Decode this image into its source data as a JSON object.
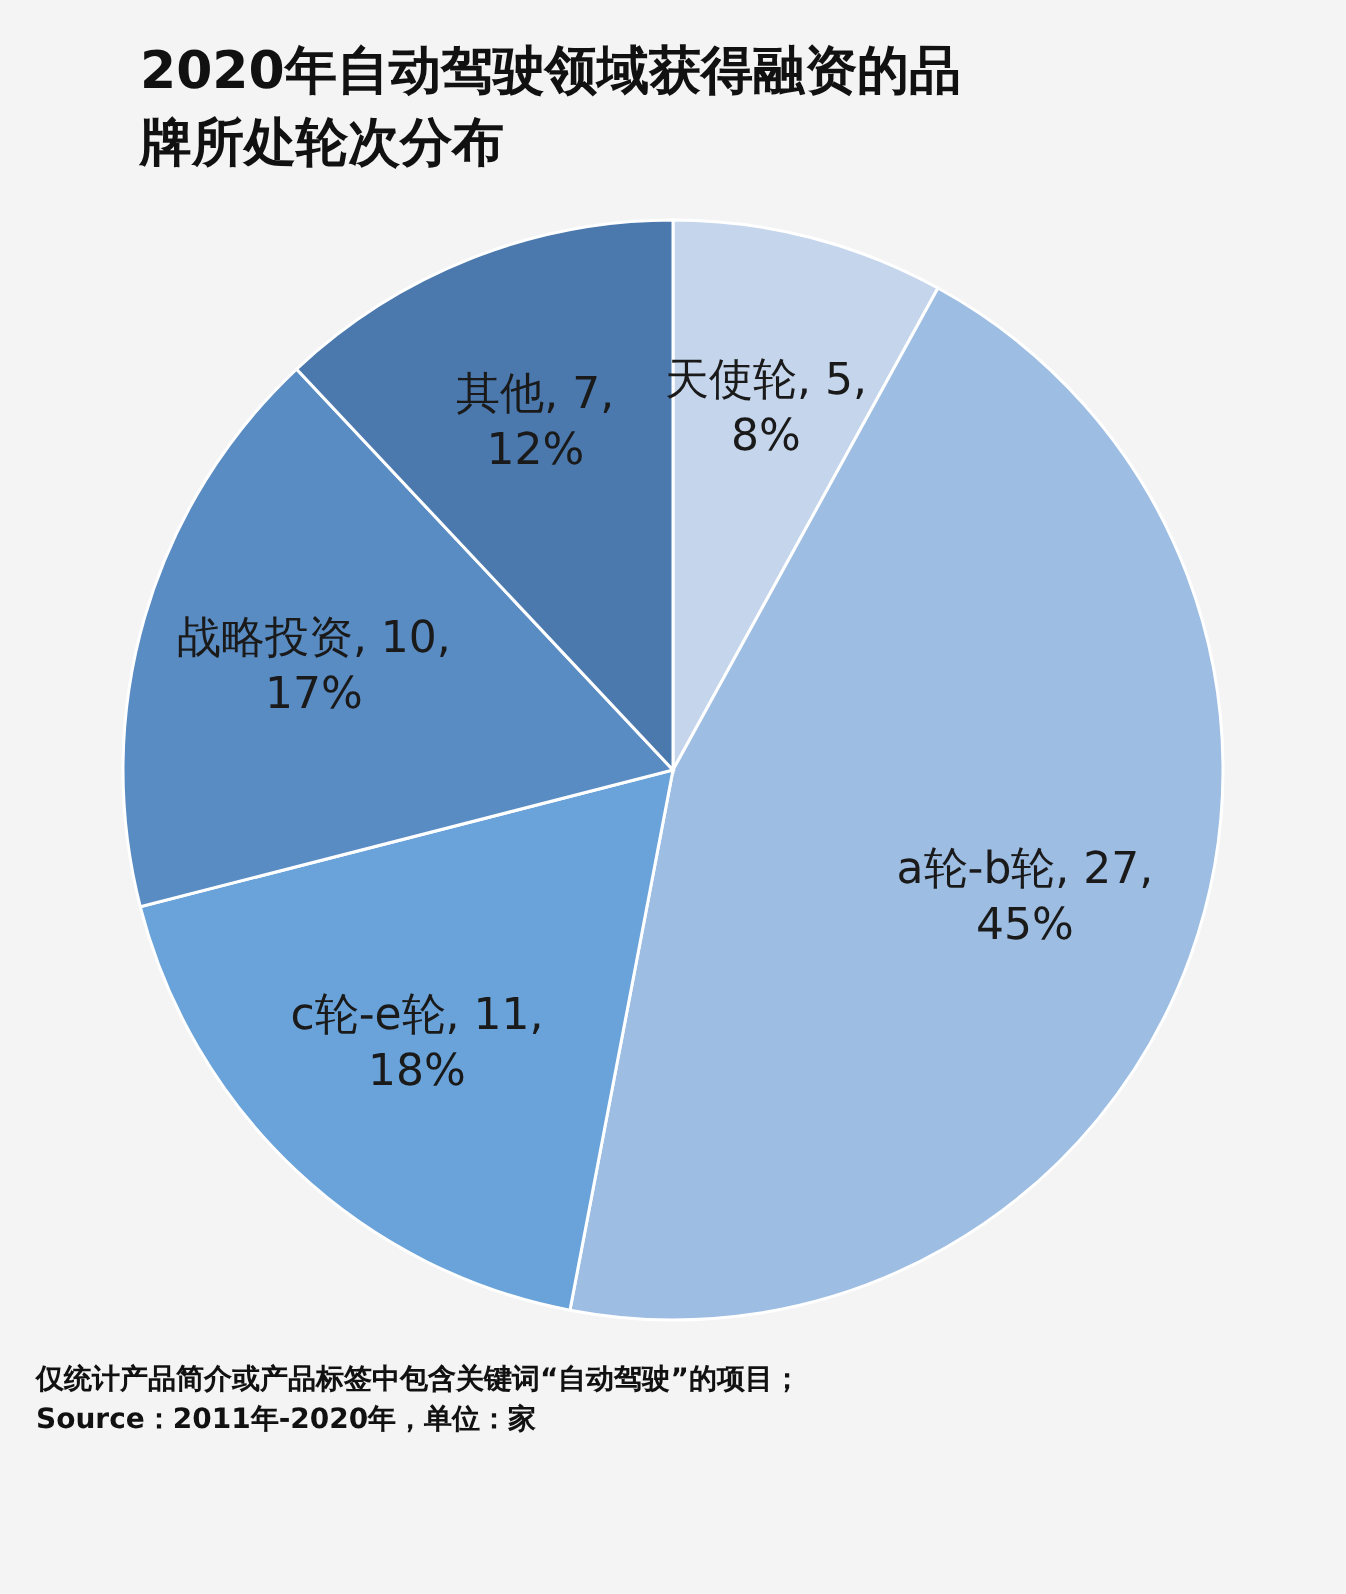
{
  "chart_data": {
    "type": "pie",
    "title": "2020年自动驾驶领域获得融资的品牌所处轮次分布",
    "categories": [
      "天使轮",
      "a轮-b轮",
      "c轮-e轮",
      "战略投资",
      "其他"
    ],
    "values": [
      8,
      45,
      18,
      17,
      12
    ],
    "colors": [
      "#c5d6ec",
      "#9dbde3",
      "#6aa3d9",
      "#5a8cc4",
      "#4b79ad"
    ],
    "value_labels": [
      ", 5,\n8%",
      ", 27,\n45%",
      ", 11,\n18%",
      ", 10,\n17%",
      ", 7,\n12%"
    ],
    "annotations": [
      "仅统计产品简介或产品标签中包含关键词“自动驾驶”的项目；",
      "Source：2011年-2020年，单位：家"
    ]
  }
}
